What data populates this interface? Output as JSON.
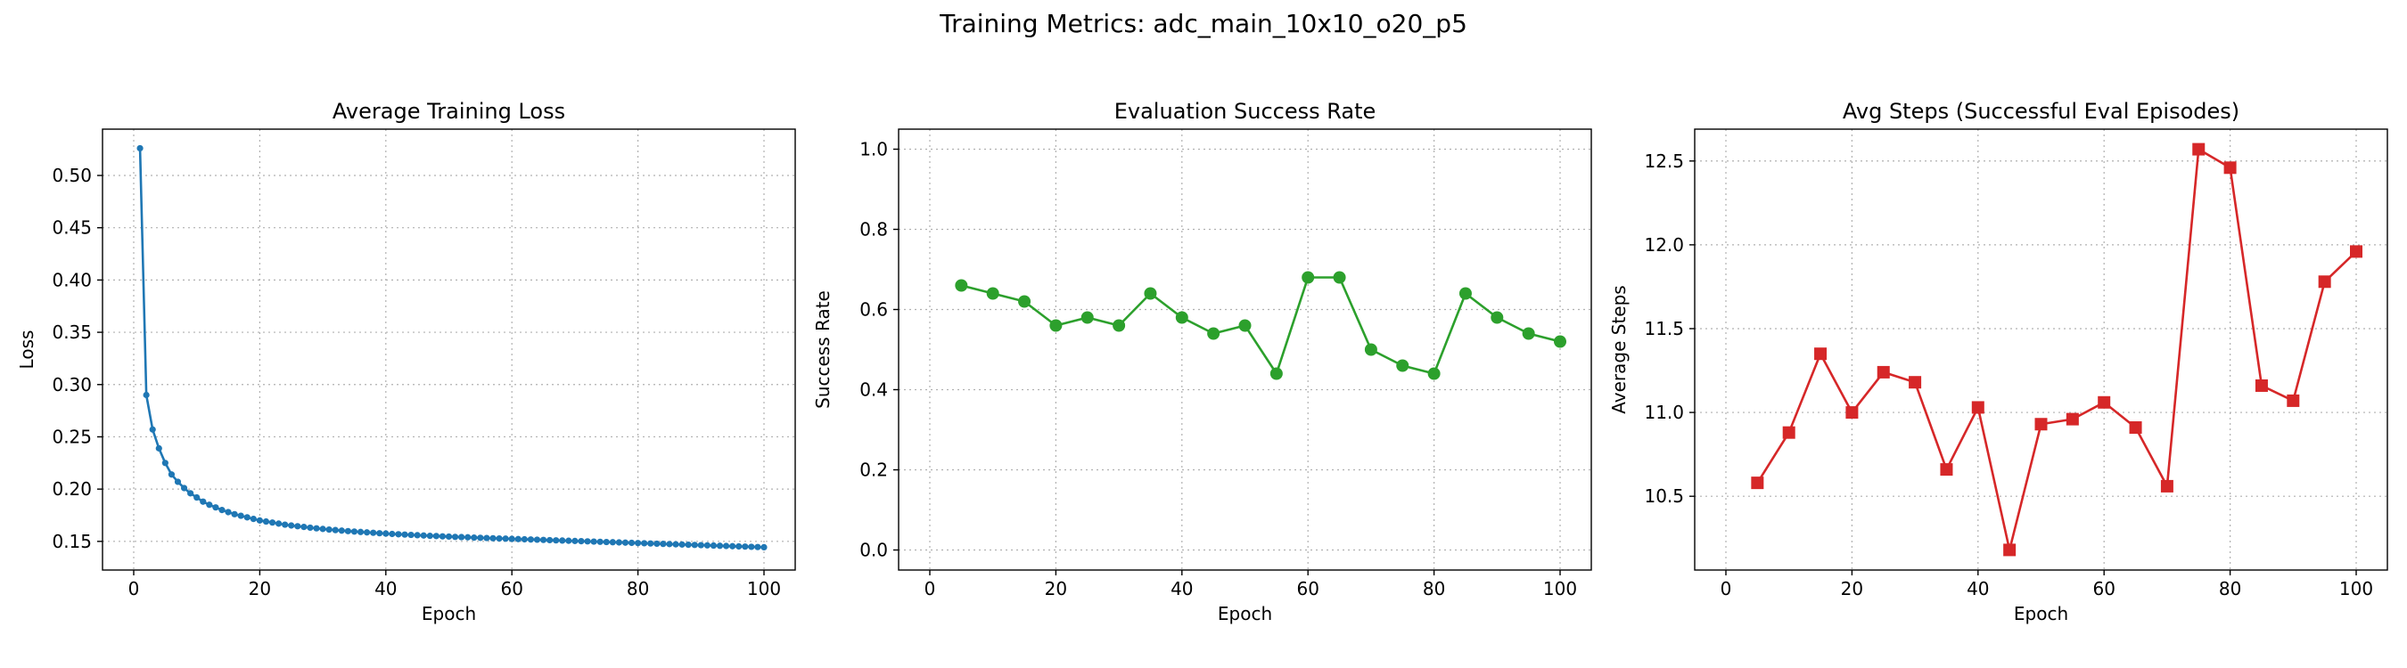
{
  "suptitle": "Training Metrics: adc_main_10x10_o20_p5",
  "chart_data": [
    {
      "type": "line",
      "title": "Average Training Loss",
      "xlabel": "Epoch",
      "ylabel": "Loss",
      "xlim": [
        -4.95,
        104.95
      ],
      "ylim": [
        0.1226,
        0.5443
      ],
      "xticks": [
        0,
        20,
        40,
        60,
        80,
        100
      ],
      "yticks": [
        0.15,
        0.2,
        0.25,
        0.3,
        0.35,
        0.4,
        0.45,
        0.5
      ],
      "ytick_labels": [
        "0.15",
        "0.20",
        "0.25",
        "0.30",
        "0.35",
        "0.40",
        "0.45",
        "0.50"
      ],
      "grid": true,
      "color": "#1f77b4",
      "marker": "circle-small",
      "series": [
        {
          "name": "Average Training Loss",
          "x": [
            1,
            2,
            3,
            4,
            5,
            6,
            7,
            8,
            9,
            10,
            11,
            12,
            13,
            14,
            15,
            16,
            17,
            18,
            19,
            20,
            21,
            22,
            23,
            24,
            25,
            26,
            27,
            28,
            29,
            30,
            31,
            32,
            33,
            34,
            35,
            36,
            37,
            38,
            39,
            40,
            41,
            42,
            43,
            44,
            45,
            46,
            47,
            48,
            49,
            50,
            51,
            52,
            53,
            54,
            55,
            56,
            57,
            58,
            59,
            60,
            61,
            62,
            63,
            64,
            65,
            66,
            67,
            68,
            69,
            70,
            71,
            72,
            73,
            74,
            75,
            76,
            77,
            78,
            79,
            80,
            81,
            82,
            83,
            84,
            85,
            86,
            87,
            88,
            89,
            90,
            91,
            92,
            93,
            94,
            95,
            96,
            97,
            98,
            99,
            100
          ],
          "y": [
            0.526,
            0.29,
            0.257,
            0.239,
            0.225,
            0.214,
            0.207,
            0.201,
            0.196,
            0.192,
            0.188,
            0.185,
            0.1825,
            0.18,
            0.178,
            0.176,
            0.1745,
            0.173,
            0.1715,
            0.17,
            0.169,
            0.168,
            0.167,
            0.166,
            0.1652,
            0.1645,
            0.1638,
            0.1631,
            0.1625,
            0.1619,
            0.1613,
            0.1608,
            0.1603,
            0.1598,
            0.1594,
            0.159,
            0.1586,
            0.1582,
            0.1578,
            0.1575,
            0.1571,
            0.1568,
            0.1565,
            0.1562,
            0.1559,
            0.1556,
            0.1553,
            0.1551,
            0.1548,
            0.1546,
            0.1543,
            0.1541,
            0.1539,
            0.1536,
            0.1534,
            0.1532,
            0.153,
            0.1528,
            0.1526,
            0.1524,
            0.1522,
            0.152,
            0.1518,
            0.1516,
            0.1514,
            0.1512,
            0.151,
            0.1508,
            0.1506,
            0.1504,
            0.1502,
            0.15,
            0.1498,
            0.1496,
            0.1494,
            0.1492,
            0.149,
            0.1488,
            0.1486,
            0.1484,
            0.1482,
            0.148,
            0.1478,
            0.1476,
            0.1474,
            0.1472,
            0.147,
            0.1468,
            0.1466,
            0.1464,
            0.1462,
            0.146,
            0.1458,
            0.1456,
            0.1454,
            0.1452,
            0.145,
            0.1448,
            0.1446,
            0.1444
          ]
        }
      ]
    },
    {
      "type": "line",
      "title": "Evaluation Success Rate",
      "xlabel": "Epoch",
      "ylabel": "Success Rate",
      "xlim": [
        -4.95,
        104.95
      ],
      "ylim": [
        -0.05,
        1.05
      ],
      "xticks": [
        0,
        20,
        40,
        60,
        80,
        100
      ],
      "yticks": [
        0.0,
        0.2,
        0.4,
        0.6,
        0.8,
        1.0
      ],
      "ytick_labels": [
        "0.0",
        "0.2",
        "0.4",
        "0.6",
        "0.8",
        "1.0"
      ],
      "grid": true,
      "color": "#2ca02c",
      "marker": "circle",
      "series": [
        {
          "name": "Evaluation Success Rate",
          "x": [
            5,
            10,
            15,
            20,
            25,
            30,
            35,
            40,
            45,
            50,
            55,
            60,
            65,
            70,
            75,
            80,
            85,
            90,
            95,
            100
          ],
          "y": [
            0.66,
            0.64,
            0.62,
            0.56,
            0.58,
            0.56,
            0.64,
            0.58,
            0.54,
            0.56,
            0.44,
            0.68,
            0.68,
            0.5,
            0.46,
            0.44,
            0.64,
            0.58,
            0.54,
            0.52
          ]
        }
      ]
    },
    {
      "type": "line",
      "title": "Avg Steps (Successful Eval Episodes)",
      "xlabel": "Epoch",
      "ylabel": "Average Steps",
      "xlim": [
        -4.95,
        104.95
      ],
      "ylim": [
        10.06,
        12.69
      ],
      "xticks": [
        0,
        20,
        40,
        60,
        80,
        100
      ],
      "yticks": [
        10.5,
        11.0,
        11.5,
        12.0,
        12.5
      ],
      "ytick_labels": [
        "10.5",
        "11.0",
        "11.5",
        "12.0",
        "12.5"
      ],
      "grid": true,
      "color": "#d62728",
      "marker": "square",
      "series": [
        {
          "name": "Avg Steps (Successful Eval Episodes)",
          "x": [
            5,
            10,
            15,
            20,
            25,
            30,
            35,
            40,
            45,
            50,
            55,
            60,
            65,
            70,
            75,
            80,
            85,
            90,
            95,
            100
          ],
          "y": [
            10.58,
            10.88,
            11.35,
            11.0,
            11.24,
            11.18,
            10.66,
            11.03,
            10.18,
            10.93,
            10.96,
            11.06,
            10.91,
            10.56,
            12.57,
            12.46,
            11.16,
            11.07,
            11.78,
            11.96
          ]
        }
      ]
    }
  ]
}
